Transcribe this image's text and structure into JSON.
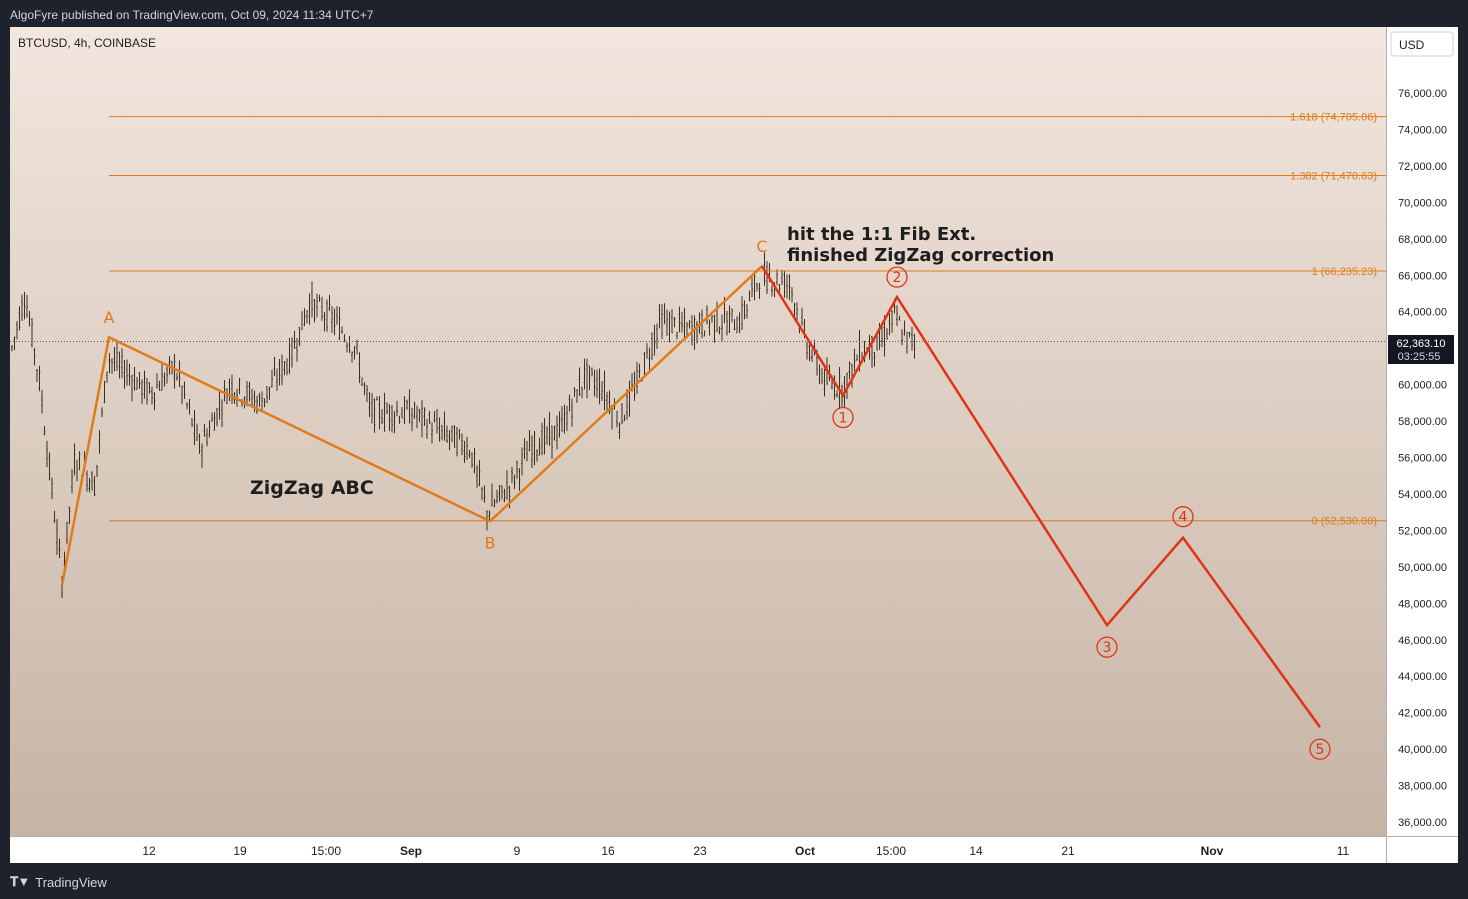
{
  "header": {
    "published_text": "AlgoFyre published on TradingView.com, Oct 09, 2024 11:34 UTC+7"
  },
  "footer": {
    "brand_label": "TradingView"
  },
  "chart_data": {
    "type": "candlestick",
    "symbol_label": "BTCUSD, 4h, COINBASE",
    "currency_label": "USD",
    "price_axis_ticks": [
      "36,000.00",
      "38,000.00",
      "40,000.00",
      "42,000.00",
      "44,000.00",
      "46,000.00",
      "48,000.00",
      "50,000.00",
      "52,000.00",
      "54,000.00",
      "56,000.00",
      "58,000.00",
      "60,000.00",
      "62,000.00",
      "64,000.00",
      "66,000.00",
      "68,000.00",
      "70,000.00",
      "72,000.00",
      "74,000.00",
      "76,000.00"
    ],
    "time_axis_ticks": [
      {
        "label": "12",
        "bold": false
      },
      {
        "label": "19",
        "bold": false
      },
      {
        "label": "15:00",
        "bold": false
      },
      {
        "label": "Sep",
        "bold": true
      },
      {
        "label": "9",
        "bold": false
      },
      {
        "label": "16",
        "bold": false
      },
      {
        "label": "23",
        "bold": false
      },
      {
        "label": "Oct",
        "bold": true
      },
      {
        "label": "15:00",
        "bold": false
      },
      {
        "label": "14",
        "bold": false
      },
      {
        "label": "21",
        "bold": false
      },
      {
        "label": "Nov",
        "bold": true
      },
      {
        "label": "11",
        "bold": false
      }
    ],
    "last_price": {
      "value": 62363.1,
      "label": "62,363.10",
      "countdown": "03:25:55"
    },
    "fib_levels": [
      {
        "ratio": "1.618",
        "price": 74705.06,
        "label": "1.618 (74,705.06)"
      },
      {
        "ratio": "1.382",
        "price": 71470.63,
        "label": "1.382 (71,470.63)"
      },
      {
        "ratio": "1",
        "price": 66235.23,
        "label": "1 (66,235.23)"
      },
      {
        "ratio": "0",
        "price": 52530.0,
        "label": "0 (52,530.00)"
      }
    ],
    "zigzag_abc": [
      {
        "label": "",
        "price": 49000
      },
      {
        "label": "A",
        "price": 62600
      },
      {
        "label": "B",
        "price": 52500
      },
      {
        "label": "C",
        "price": 66500
      }
    ],
    "impulse_projection": [
      {
        "label": "",
        "price": 66500
      },
      {
        "label": "1",
        "price": 59400
      },
      {
        "label": "2",
        "price": 64800
      },
      {
        "label": "3",
        "price": 46800
      },
      {
        "label": "4",
        "price": 51600
      },
      {
        "label": "5",
        "price": 41200
      }
    ],
    "annotations": {
      "zigzag_text": "ZigZag ABC",
      "note_line1": "hit the 1:1 Fib Ext.",
      "note_line2": "finished ZigZag correction"
    },
    "colors": {
      "background_top": "#f2e6de",
      "background_bottom": "#c6b4a5",
      "fib_line": "#e07b1a",
      "zigzag": "#e07b1a",
      "impulse": "#e03416",
      "candles": "#3b2f22",
      "text": "#1e1e1e"
    }
  }
}
